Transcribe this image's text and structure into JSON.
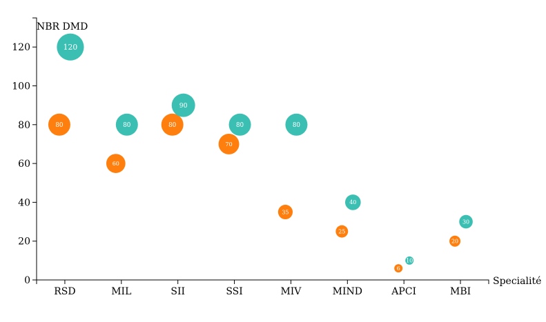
{
  "chart_data": {
    "type": "scatter",
    "ylabel": "NBR DMD",
    "xlabel": "Specialité",
    "categories": [
      "RSD",
      "MIL",
      "SII",
      "SSI",
      "MIV",
      "MIND",
      "APCI",
      "MBI"
    ],
    "ylim": [
      0,
      135
    ],
    "yticks": [
      0,
      20,
      40,
      60,
      80,
      100,
      120
    ],
    "series": [
      {
        "color": "#ff7f0e",
        "points": [
          {
            "category": "RSD",
            "value": 80,
            "label": "80"
          },
          {
            "category": "MIL",
            "value": 60,
            "label": "60"
          },
          {
            "category": "SII",
            "value": 80,
            "label": "80"
          },
          {
            "category": "SSI",
            "value": 70,
            "label": "70"
          },
          {
            "category": "MIV",
            "value": 35,
            "label": "35"
          },
          {
            "category": "MIND",
            "value": 25,
            "label": "25"
          },
          {
            "category": "APCI",
            "value": 6,
            "label": "6"
          },
          {
            "category": "MBI",
            "value": 20,
            "label": "20"
          }
        ]
      },
      {
        "color": "#3cbfb3",
        "points": [
          {
            "category": "RSD",
            "value": 120,
            "label": "120"
          },
          {
            "category": "MIL",
            "value": 80,
            "label": "80"
          },
          {
            "category": "SII",
            "value": 90,
            "label": "90"
          },
          {
            "category": "SSI",
            "value": 80,
            "label": "80"
          },
          {
            "category": "MIV",
            "value": 80,
            "label": "80"
          },
          {
            "category": "MIND",
            "value": 40,
            "label": "40"
          },
          {
            "category": "APCI",
            "value": 10,
            "label": "10"
          },
          {
            "category": "MBI",
            "value": 30,
            "label": "30"
          }
        ]
      }
    ]
  }
}
